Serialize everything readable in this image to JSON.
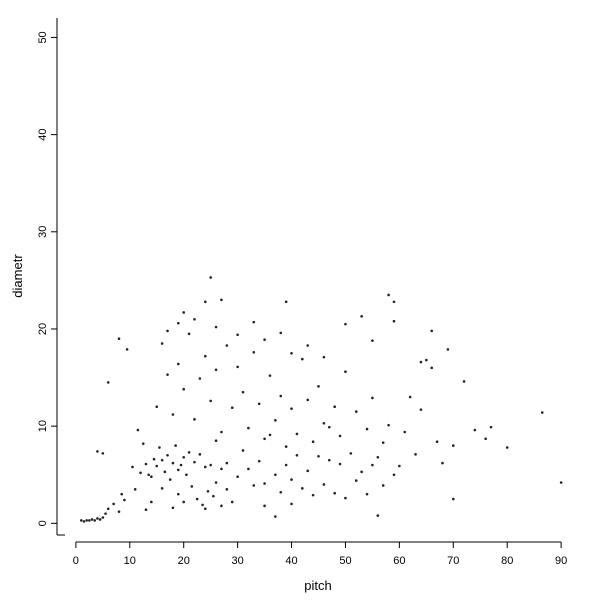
{
  "chart_data": {
    "type": "scatter",
    "x_label": "pitch",
    "y_label": "diametr",
    "color": "#222222",
    "xlim": [
      -3.5,
      93.5
    ],
    "ylim": [
      -1.2,
      52
    ],
    "xticks": [
      0,
      10,
      20,
      30,
      40,
      50,
      60,
      70,
      80,
      90
    ],
    "yticks": [
      0,
      10,
      20,
      30,
      40,
      50
    ],
    "x": [
      1,
      1.5,
      2,
      2.5,
      3,
      3.5,
      4,
      4.5,
      5,
      5.5,
      6,
      7,
      8,
      8.5,
      9,
      4,
      5,
      6,
      8,
      9.5,
      12,
      13,
      14,
      15,
      16,
      17,
      18,
      19,
      20,
      21,
      17.5,
      18.5,
      19.5,
      16.5,
      15.5,
      14.5,
      13.5,
      20.5,
      22,
      23,
      24,
      25,
      26,
      27,
      28,
      22.5,
      23.5,
      24.5,
      25.5,
      21.5,
      20,
      19,
      11,
      10.5,
      12.5,
      11.5,
      15,
      16,
      17,
      18,
      19,
      20,
      21,
      22,
      23,
      24,
      25,
      26,
      27,
      28,
      29,
      30,
      31,
      32,
      33,
      34,
      35,
      36,
      37,
      38,
      39,
      40,
      41,
      42,
      43,
      44,
      45,
      46,
      47,
      48,
      49,
      50,
      51,
      52,
      53,
      54,
      55,
      56,
      57,
      58,
      60,
      61,
      62,
      63,
      64,
      65,
      67,
      68,
      69,
      70,
      72,
      74,
      76,
      26,
      28,
      30,
      31,
      32,
      33,
      34,
      35,
      36,
      37,
      38,
      39,
      40,
      41,
      42,
      43,
      44,
      45,
      46,
      47,
      48,
      49,
      50,
      52,
      54,
      55,
      57,
      59,
      29,
      27,
      24,
      18,
      14,
      13,
      16,
      35,
      40,
      17,
      19,
      22,
      24,
      26,
      30,
      33,
      35,
      38,
      40,
      43,
      46,
      50,
      55,
      59,
      64,
      66,
      20,
      25,
      58,
      59,
      86.5,
      90,
      80,
      77,
      70,
      66,
      56,
      37,
      53,
      39,
      27
    ],
    "values": [
      0.3,
      0.2,
      0.3,
      0.3,
      0.4,
      0.3,
      0.5,
      0.4,
      0.6,
      1.0,
      1.5,
      2.0,
      1.2,
      3.0,
      2.4,
      7.4,
      7.2,
      14.5,
      19,
      17.9,
      5.2,
      6.1,
      4.8,
      5.9,
      6.5,
      7.0,
      6.2,
      5.5,
      6.8,
      7.3,
      4.5,
      8.0,
      6.0,
      5.3,
      7.8,
      6.6,
      5.0,
      5.0,
      6.3,
      7.1,
      5.8,
      6.0,
      4.2,
      5.6,
      6.2,
      2.5,
      1.9,
      3.3,
      2.8,
      3.8,
      2.2,
      3.0,
      3.5,
      5.8,
      8.2,
      9.6,
      12,
      18.5,
      15.3,
      11.2,
      16.4,
      13.8,
      19.5,
      10.7,
      14.9,
      17.2,
      12.6,
      15.8,
      9.4,
      18.3,
      11.9,
      16.1,
      13.5,
      9.8,
      17.6,
      12.3,
      8.7,
      15.2,
      10.6,
      13.1,
      7.9,
      11.8,
      9.2,
      16.9,
      12.7,
      8.4,
      14.1,
      10.3,
      6.5,
      12.0,
      9.0,
      15.6,
      7.2,
      11.5,
      5.3,
      9.7,
      12.9,
      6.8,
      8.3,
      10.1,
      5.9,
      9.4,
      13.0,
      7.1,
      11.7,
      16.8,
      8.4,
      6.2,
      17.9,
      8.0,
      14.6,
      9.6,
      8.7,
      8.5,
      3.5,
      4.8,
      7.5,
      5.6,
      3.9,
      6.4,
      4.1,
      9.1,
      5.0,
      3.2,
      6.0,
      4.5,
      7.0,
      3.6,
      5.4,
      2.9,
      6.9,
      4.0,
      9.9,
      3.1,
      6.1,
      2.6,
      4.4,
      3.0,
      6.0,
      3.9,
      5.0,
      2.2,
      1.8,
      1.5,
      1.6,
      2.2,
      1.4,
      3.6,
      1.8,
      2.0,
      19.8,
      20.6,
      21.0,
      22.8,
      20.2,
      19.4,
      20.7,
      18.9,
      19.6,
      17.5,
      18.3,
      17.1,
      20.5,
      18.8,
      20.8,
      16.6,
      16.0,
      21.7,
      25.3,
      23.5,
      22.8,
      11.4,
      4.2,
      7.8,
      9.9,
      2.5,
      19.8,
      0.8,
      0.7,
      21.3,
      22.8,
      23.0
    ]
  }
}
